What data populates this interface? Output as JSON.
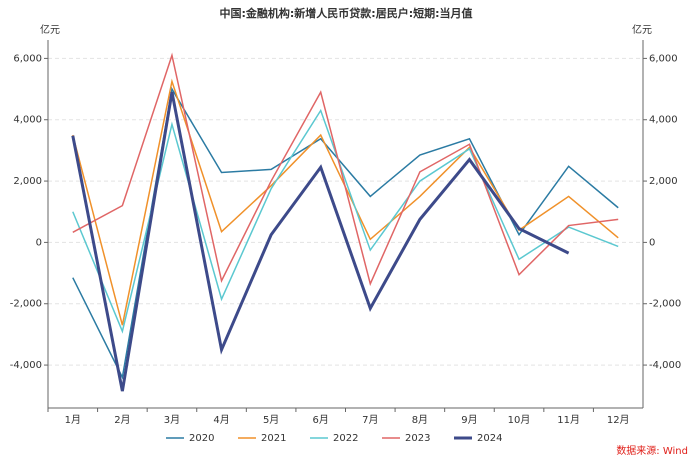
{
  "chart_data": {
    "type": "line",
    "title": "中国:金融机构:新增人民币贷款:居民户:短期:当月值",
    "ylabel": "亿元",
    "y2label": "亿元",
    "source": "数据来源: Wind",
    "categories": [
      "1月",
      "2月",
      "3月",
      "4月",
      "5月",
      "6月",
      "7月",
      "8月",
      "9月",
      "10月",
      "11月",
      "12月"
    ],
    "series": [
      {
        "name": "2020",
        "color": "#2b7ba3",
        "width": 1.5,
        "values": [
          -1150,
          -4400,
          5000,
          2280,
          2380,
          3380,
          1500,
          2850,
          3380,
          250,
          2480,
          1130
        ]
      },
      {
        "name": "2021",
        "color": "#f0912a",
        "width": 1.5,
        "values": [
          3500,
          -2700,
          5250,
          350,
          1850,
          3500,
          100,
          1500,
          3100,
          400,
          1500,
          150
        ]
      },
      {
        "name": "2022",
        "color": "#5bc8d0",
        "width": 1.5,
        "values": [
          1000,
          -2900,
          3850,
          -1850,
          1750,
          4300,
          -250,
          2000,
          3050,
          -550,
          500,
          -130
        ]
      },
      {
        "name": "2023",
        "color": "#e06666",
        "width": 1.5,
        "values": [
          330,
          1200,
          6100,
          -1250,
          2000,
          4900,
          -1350,
          2300,
          3200,
          -1050,
          550,
          750
        ]
      },
      {
        "name": "2024",
        "color": "#3d4a8a",
        "width": 3,
        "values": [
          3480,
          -4850,
          4900,
          -3500,
          250,
          2450,
          -2150,
          750,
          2700,
          450,
          -350,
          null
        ]
      }
    ],
    "ylim": [
      -5400,
      6600
    ],
    "yticks": [
      {
        "value": -4000,
        "label": "-4,000"
      },
      {
        "value": -2000,
        "label": "-2,000"
      },
      0,
      {
        "value": 2000,
        "label": "2,000"
      },
      {
        "value": 4000,
        "label": "4,000"
      },
      {
        "value": 6000,
        "label": "6,000"
      }
    ],
    "y2lim": [
      -5400,
      6600
    ],
    "y2ticks": [
      {
        "value": -4000,
        "label": "-4,000"
      },
      {
        "value": -2000,
        "label": "-2,000"
      },
      0,
      {
        "value": 2000,
        "label": "2,000"
      },
      {
        "value": 4000,
        "label": "4,000"
      },
      {
        "value": 6000,
        "label": "6,000"
      }
    ],
    "grid": true,
    "legend": "bottom"
  }
}
